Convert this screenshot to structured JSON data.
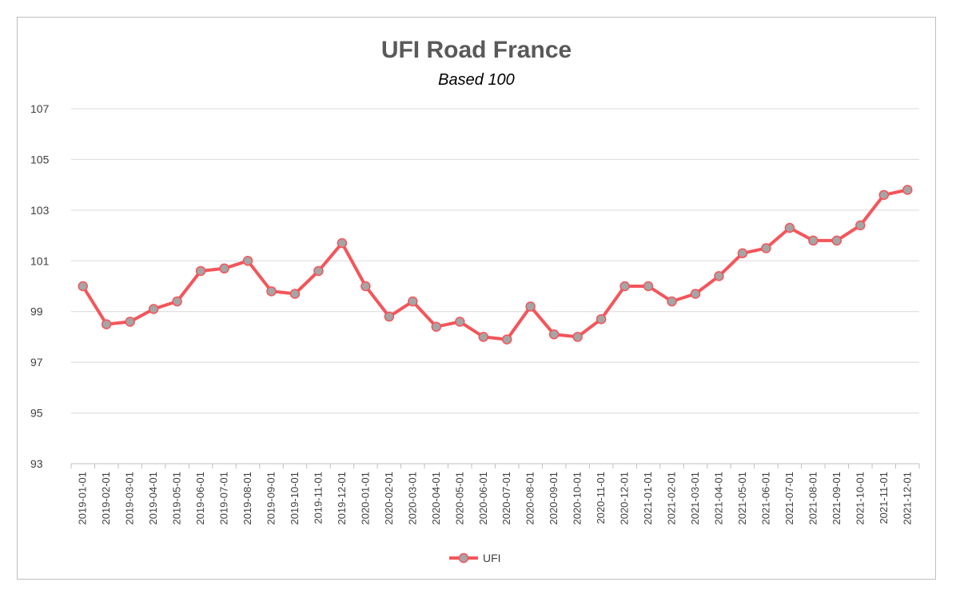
{
  "chart_data": {
    "type": "line",
    "title": "UFI Road France",
    "subtitle": "Based 100",
    "xlabel": "",
    "ylabel": "",
    "ylim": [
      93,
      107
    ],
    "yticks": [
      "93",
      "95",
      "97",
      "99",
      "101",
      "103",
      "105",
      "107"
    ],
    "grid": "horizontal",
    "legend": "bottom",
    "line_color": "#f4555a",
    "marker_color": "#a5a5a5",
    "categories": [
      "2019-01-01",
      "2019-02-01",
      "2019-03-01",
      "2019-04-01",
      "2019-05-01",
      "2019-06-01",
      "2019-07-01",
      "2019-08-01",
      "2019-09-01",
      "2019-10-01",
      "2019-11-01",
      "2019-12-01",
      "2020-01-01",
      "2020-02-01",
      "2020-03-01",
      "2020-04-01",
      "2020-05-01",
      "2020-06-01",
      "2020-07-01",
      "2020-08-01",
      "2020-09-01",
      "2020-10-01",
      "2020-11-01",
      "2020-12-01",
      "2021-01-01",
      "2021-02-01",
      "2021-03-01",
      "2021-04-01",
      "2021-05-01",
      "2021-06-01",
      "2021-07-01",
      "2021-08-01",
      "2021-09-01",
      "2021-10-01",
      "2021-11-01",
      "2021-12-01"
    ],
    "series": [
      {
        "name": "UFI",
        "values": [
          100.0,
          98.5,
          98.6,
          99.1,
          99.4,
          100.6,
          100.7,
          101.0,
          99.8,
          99.7,
          100.6,
          101.7,
          100.0,
          98.8,
          99.4,
          98.4,
          98.6,
          98.0,
          97.9,
          99.2,
          98.1,
          98.0,
          98.7,
          100.0,
          100.0,
          99.4,
          99.7,
          100.4,
          101.3,
          101.5,
          102.3,
          101.8,
          101.8,
          102.4,
          103.6,
          103.8
        ]
      }
    ]
  }
}
